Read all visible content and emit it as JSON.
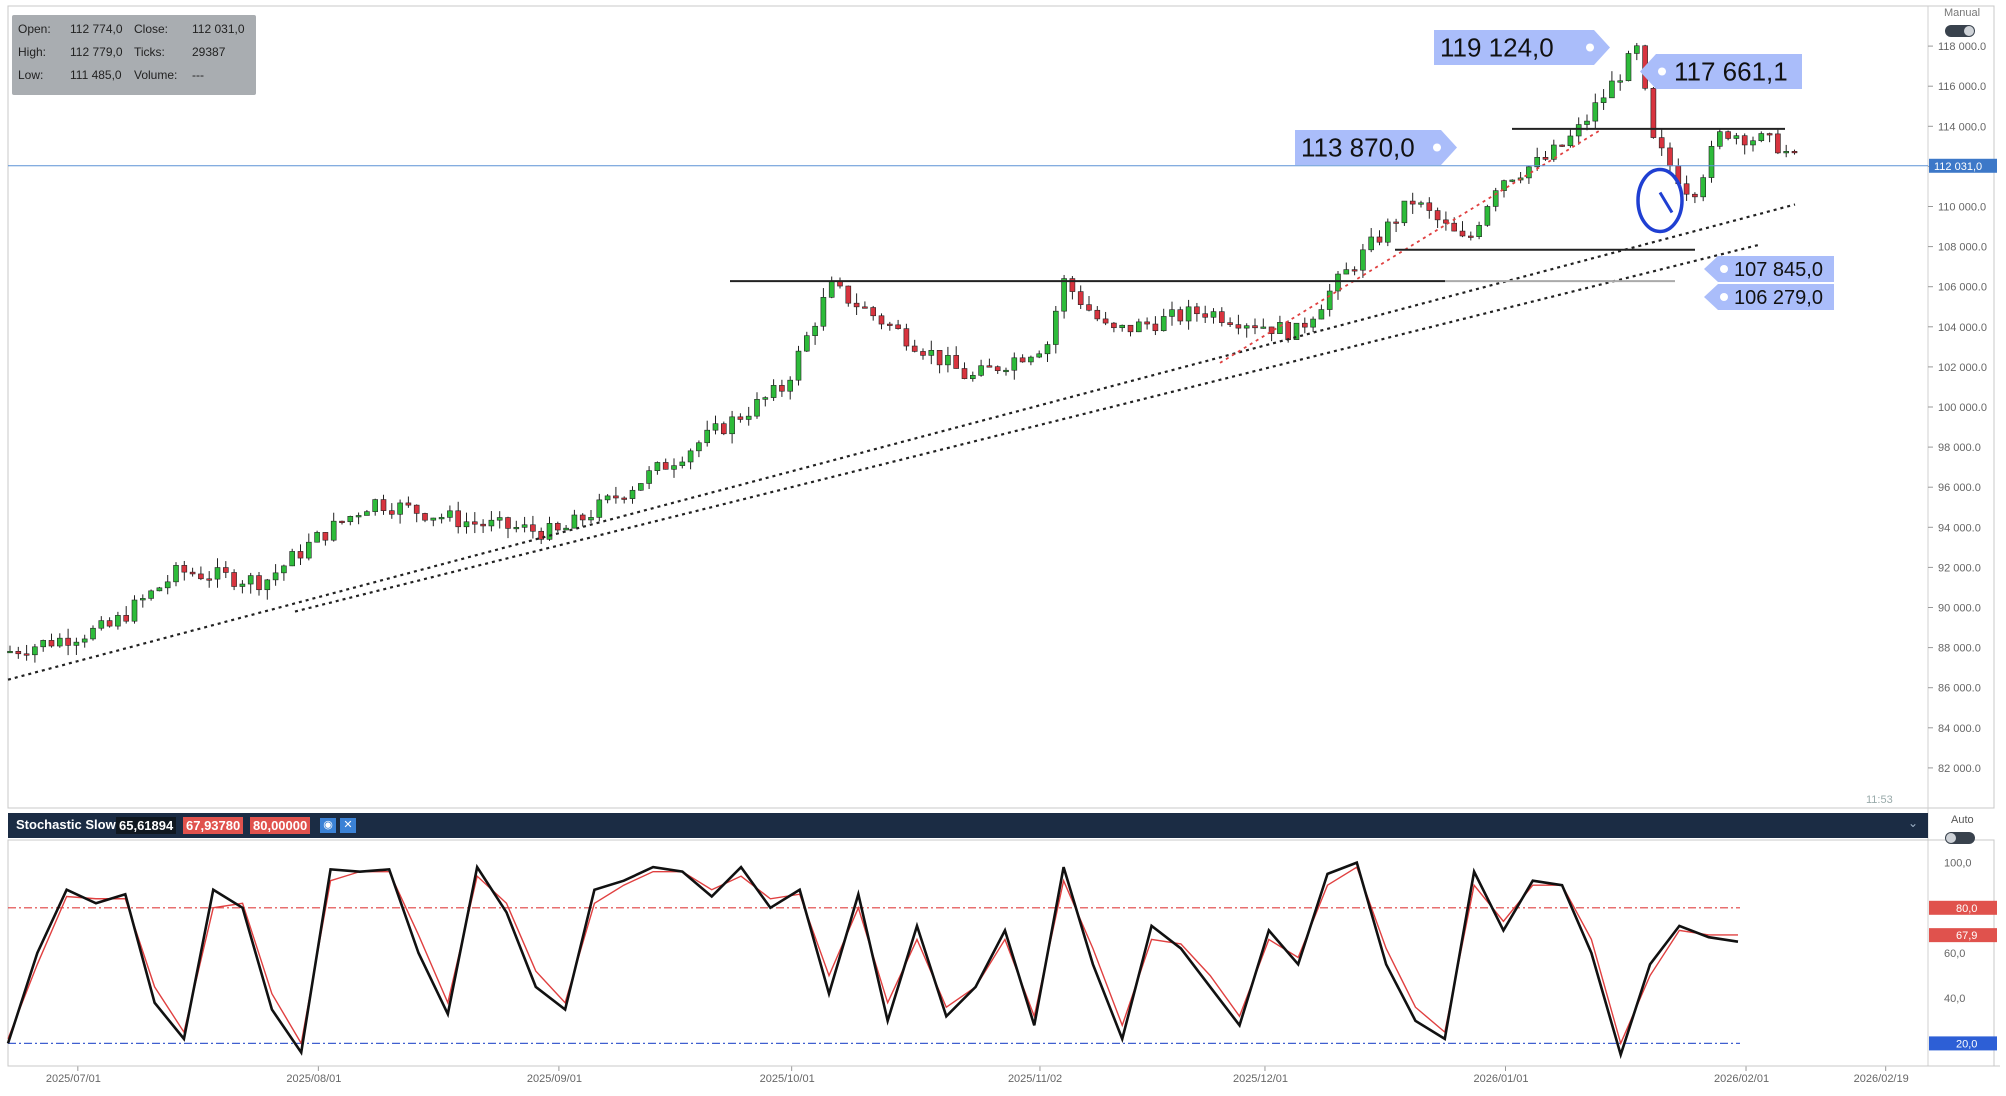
{
  "info": {
    "open_label": "Open:",
    "open": "112 774,0",
    "close_label": "Close:",
    "close": "112 031,0",
    "high_label": "High:",
    "high": "112 779,0",
    "ticks_label": "Ticks:",
    "ticks": "29387",
    "low_label": "Low:",
    "low": "111 485,0",
    "volume_label": "Volume:",
    "volume": "---"
  },
  "scale_mode_top": "Manual",
  "scale_mode_bottom": "Auto",
  "time_readout": "11:53",
  "current_price_label": "112 031,0",
  "annotations": [
    "119 124,0",
    "117 661,1",
    "113 870,0",
    "107 845,0",
    "106 279,0"
  ],
  "indicator": {
    "name": "Stochastic Slow",
    "k": "65,61894",
    "d": "67,93780",
    "level": "80,00000",
    "level_high_label": "80,0",
    "level_k_label": "67,9",
    "level_low_label": "20,0"
  },
  "colors": {
    "bull": "#2dbb3a",
    "bear": "#d8343f",
    "blue_line": "#5b92d6",
    "annotation_bg": "#aabdfa",
    "panel_bg": "#1b2c44"
  },
  "chart_data": [
    {
      "type": "candlestick",
      "ylim": [
        80000,
        120000
      ],
      "y_ticks": [
        82000,
        84000,
        86000,
        88000,
        90000,
        92000,
        94000,
        96000,
        98000,
        100000,
        102000,
        104000,
        106000,
        108000,
        110000,
        112000,
        114000,
        116000,
        118000
      ],
      "y_tick_labels": [
        "82 000.0",
        "84 000.0",
        "86 000.0",
        "88 000.0",
        "90 000.0",
        "92 000.0",
        "94 000.0",
        "96 000.0",
        "98 000.0",
        "100 000.0",
        "102 000.0",
        "104 000.0",
        "106 000.0",
        "108 000.0",
        "110 000.0",
        "112 000.0",
        "114 000.0",
        "116 000.0",
        "118 000.0"
      ],
      "x_tick_labels": [
        "2025/07/01",
        "2025/08/01",
        "2025/09/01",
        "2025/10/01",
        "2025/11/02",
        "2025/12/01",
        "2026/01/01",
        "2026/02/01",
        "2026/02/19"
      ],
      "key_points": [
        {
          "date": "2025/06/22",
          "close": 87800
        },
        {
          "date": "2025/07/05",
          "close": 89000
        },
        {
          "date": "2025/07/14",
          "close": 91800
        },
        {
          "date": "2025/07/25",
          "close": 91300
        },
        {
          "date": "2025/08/01",
          "close": 93500
        },
        {
          "date": "2025/08/08",
          "close": 95300
        },
        {
          "date": "2025/08/21",
          "close": 94200
        },
        {
          "date": "2025/09/01",
          "close": 93700
        },
        {
          "date": "2025/09/15",
          "close": 97200
        },
        {
          "date": "2025/09/30",
          "close": 101000
        },
        {
          "date": "2025/10/06",
          "close": 106000
        },
        {
          "date": "2025/10/13",
          "close": 104200
        },
        {
          "date": "2025/10/24",
          "close": 101400
        },
        {
          "date": "2025/11/03",
          "close": 103200
        },
        {
          "date": "2025/11/05",
          "close": 106300
        },
        {
          "date": "2025/11/11",
          "close": 103700
        },
        {
          "date": "2025/11/23",
          "close": 104800
        },
        {
          "date": "2025/12/05",
          "close": 103700
        },
        {
          "date": "2025/12/11",
          "close": 106500
        },
        {
          "date": "2025/12/20",
          "close": 110300
        },
        {
          "date": "2025/12/27",
          "close": 108100
        },
        {
          "date": "2025/12/31",
          "close": 111300
        },
        {
          "date": "2026/01/06",
          "close": 112300
        },
        {
          "date": "2026/01/10",
          "close": 113600
        },
        {
          "date": "2026/01/18",
          "close": 117800
        },
        {
          "date": "2026/01/20",
          "close": 113200
        },
        {
          "date": "2026/01/25",
          "close": 110600
        },
        {
          "date": "2026/01/29",
          "close": 113800
        },
        {
          "date": "2026/02/05",
          "close": 113100
        },
        {
          "date": "2026/02/08",
          "close": 112031
        }
      ],
      "levels": [
        106279,
        107845,
        113870,
        117661.1,
        119124
      ]
    },
    {
      "type": "line",
      "title": "Stochastic Slow",
      "ylim": [
        10,
        110
      ],
      "y_ticks": [
        40,
        60,
        100
      ],
      "y_tick_labels": [
        "40,0",
        "60,0",
        "100,0"
      ],
      "reference_levels": [
        80,
        20
      ],
      "series": [
        {
          "name": "%K",
          "values": [
            20,
            60,
            88,
            82,
            86,
            38,
            22,
            88,
            80,
            35,
            16,
            97,
            96,
            97,
            60,
            33,
            98,
            78,
            45,
            35,
            88,
            92,
            98,
            96,
            85,
            98,
            80,
            88,
            42,
            86,
            30,
            72,
            32,
            45,
            70,
            28,
            98,
            55,
            22,
            72,
            62,
            45,
            28,
            70,
            55,
            95,
            100,
            55,
            30,
            22,
            96,
            70,
            92,
            90,
            60,
            15,
            55,
            72,
            67,
            65
          ]
        },
        {
          "name": "%D",
          "values": [
            22,
            55,
            85,
            84,
            84,
            45,
            25,
            80,
            82,
            42,
            20,
            92,
            96,
            96,
            68,
            38,
            94,
            82,
            52,
            38,
            82,
            90,
            96,
            96,
            88,
            94,
            84,
            86,
            50,
            80,
            38,
            66,
            36,
            45,
            66,
            32,
            92,
            62,
            28,
            66,
            64,
            50,
            32,
            66,
            58,
            90,
            98,
            62,
            36,
            25,
            90,
            74,
            90,
            90,
            66,
            20,
            50,
            70,
            68,
            68
          ]
        }
      ]
    }
  ]
}
